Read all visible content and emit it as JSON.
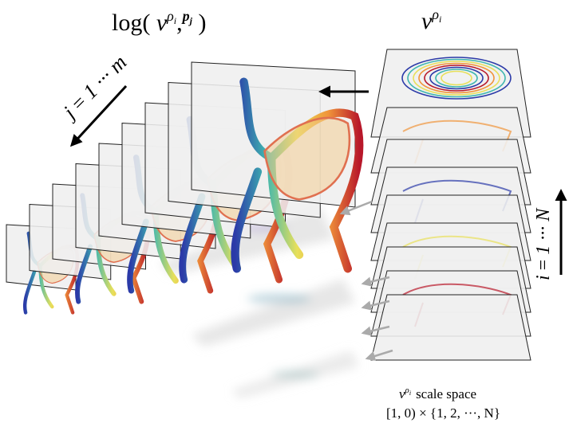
{
  "titles": {
    "left": {
      "prefix": "log(",
      "base": "v",
      "sup": "ρ",
      "sup_sub": "i",
      "sep": ",",
      "point": "p",
      "point_sub": "j",
      "suffix": ")"
    },
    "right": {
      "base": "v",
      "sup": "ρ",
      "sup_sub": "i"
    }
  },
  "index_labels": {
    "j": {
      "var": "j",
      "eq": "=",
      "range": "1 ··· m"
    },
    "i": {
      "var": "i",
      "eq": "=",
      "range": "1 ··· N"
    }
  },
  "caption": {
    "line1": {
      "base": "v",
      "sup": "ρ",
      "sup_sub": "i",
      "text": "scale space"
    },
    "line2": "[1, 0) × {1, 2, ···, N}"
  }
}
